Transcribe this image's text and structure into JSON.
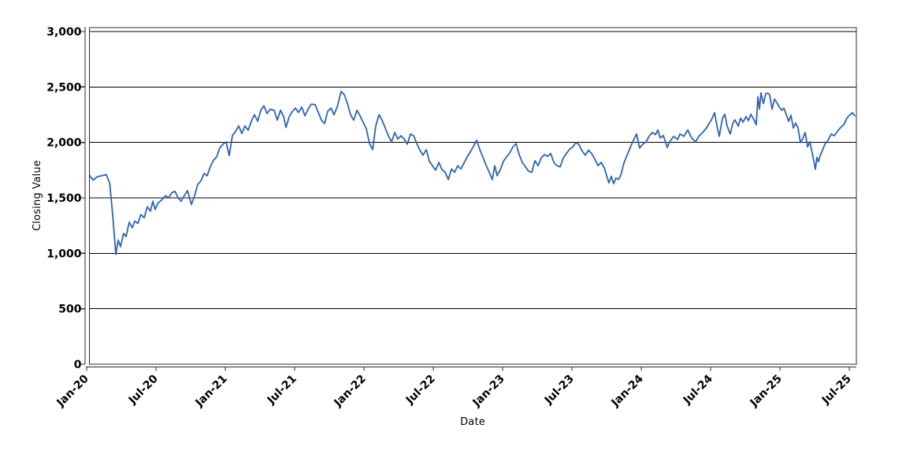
{
  "chart_data": {
    "type": "line",
    "title": "",
    "xlabel": "Date",
    "ylabel": "Closing Value",
    "legend": "none",
    "grid": "horizontal-only",
    "ylim": [
      0,
      3000
    ],
    "y_ticks": [
      0,
      500,
      1000,
      1500,
      2000,
      2500,
      3000
    ],
    "y_tick_labels": [
      "0",
      "500",
      "1,000",
      "1,500",
      "2,000",
      "2,500",
      "3,000"
    ],
    "x_tick_labels": [
      "Jan-20",
      "Jul-20",
      "Jan-21",
      "Jul-21",
      "Jan-22",
      "Jul-22",
      "Jan-23",
      "Jul-23",
      "Jan-24",
      "Jul-24",
      "Jan-25",
      "Jul-25"
    ],
    "x_tick_months": [
      0,
      6,
      12,
      18,
      24,
      30,
      36,
      42,
      48,
      54,
      60,
      66
    ],
    "x_unit": "months since Jan-2020",
    "colors": {
      "line": "#2F63AF",
      "grid": "#000000",
      "axis": "#2b2b2b",
      "border": "#2b2b2b",
      "text": "#000000",
      "background": "#ffffff"
    },
    "series": [
      {
        "name": "Closing Value",
        "points": [
          [
            0.2,
            1705
          ],
          [
            0.55,
            1660
          ],
          [
            0.9,
            1690
          ],
          [
            1.3,
            1700
          ],
          [
            1.7,
            1710
          ],
          [
            2.0,
            1630
          ],
          [
            2.25,
            1350
          ],
          [
            2.52,
            990
          ],
          [
            2.73,
            1120
          ],
          [
            2.93,
            1060
          ],
          [
            3.2,
            1180
          ],
          [
            3.41,
            1150
          ],
          [
            3.68,
            1280
          ],
          [
            3.95,
            1230
          ],
          [
            4.16,
            1290
          ],
          [
            4.43,
            1270
          ],
          [
            4.7,
            1350
          ],
          [
            4.98,
            1320
          ],
          [
            5.25,
            1420
          ],
          [
            5.52,
            1380
          ],
          [
            5.73,
            1470
          ],
          [
            5.93,
            1395
          ],
          [
            6.14,
            1450
          ],
          [
            6.48,
            1480
          ],
          [
            6.82,
            1520
          ],
          [
            7.09,
            1500
          ],
          [
            7.36,
            1545
          ],
          [
            7.64,
            1560
          ],
          [
            7.91,
            1500
          ],
          [
            8.18,
            1470
          ],
          [
            8.45,
            1520
          ],
          [
            8.73,
            1565
          ],
          [
            9.07,
            1440
          ],
          [
            9.34,
            1520
          ],
          [
            9.61,
            1620
          ],
          [
            9.89,
            1655
          ],
          [
            10.16,
            1720
          ],
          [
            10.43,
            1700
          ],
          [
            10.7,
            1780
          ],
          [
            10.98,
            1840
          ],
          [
            11.25,
            1870
          ],
          [
            11.52,
            1950
          ],
          [
            11.8,
            1985
          ],
          [
            12.07,
            2005
          ],
          [
            12.34,
            1880
          ],
          [
            12.61,
            2060
          ],
          [
            12.89,
            2100
          ],
          [
            13.16,
            2150
          ],
          [
            13.43,
            2080
          ],
          [
            13.7,
            2150
          ],
          [
            13.98,
            2110
          ],
          [
            14.25,
            2190
          ],
          [
            14.52,
            2250
          ],
          [
            14.8,
            2190
          ],
          [
            15.07,
            2290
          ],
          [
            15.34,
            2330
          ],
          [
            15.61,
            2260
          ],
          [
            15.89,
            2300
          ],
          [
            16.23,
            2290
          ],
          [
            16.5,
            2200
          ],
          [
            16.77,
            2290
          ],
          [
            17.05,
            2230
          ],
          [
            17.25,
            2135
          ],
          [
            17.52,
            2230
          ],
          [
            17.8,
            2280
          ],
          [
            18.07,
            2310
          ],
          [
            18.34,
            2270
          ],
          [
            18.61,
            2320
          ],
          [
            18.89,
            2240
          ],
          [
            19.16,
            2300
          ],
          [
            19.43,
            2345
          ],
          [
            19.77,
            2340
          ],
          [
            20.05,
            2270
          ],
          [
            20.32,
            2200
          ],
          [
            20.59,
            2170
          ],
          [
            20.86,
            2280
          ],
          [
            21.14,
            2310
          ],
          [
            21.41,
            2250
          ],
          [
            21.68,
            2320
          ],
          [
            22.02,
            2460
          ],
          [
            22.3,
            2430
          ],
          [
            22.57,
            2350
          ],
          [
            22.84,
            2250
          ],
          [
            23.11,
            2200
          ],
          [
            23.39,
            2290
          ],
          [
            23.66,
            2240
          ],
          [
            23.93,
            2180
          ],
          [
            24.2,
            2125
          ],
          [
            24.48,
            1990
          ],
          [
            24.75,
            1935
          ],
          [
            25.02,
            2150
          ],
          [
            25.3,
            2250
          ],
          [
            25.57,
            2200
          ],
          [
            25.84,
            2130
          ],
          [
            26.11,
            2060
          ],
          [
            26.39,
            2005
          ],
          [
            26.66,
            2090
          ],
          [
            26.93,
            2030
          ],
          [
            27.2,
            2060
          ],
          [
            27.48,
            2030
          ],
          [
            27.75,
            1985
          ],
          [
            28.02,
            2075
          ],
          [
            28.3,
            2060
          ],
          [
            28.57,
            1990
          ],
          [
            28.84,
            1930
          ],
          [
            29.11,
            1885
          ],
          [
            29.39,
            1935
          ],
          [
            29.66,
            1830
          ],
          [
            29.93,
            1790
          ],
          [
            30.2,
            1750
          ],
          [
            30.48,
            1820
          ],
          [
            30.75,
            1755
          ],
          [
            31.02,
            1730
          ],
          [
            31.3,
            1665
          ],
          [
            31.57,
            1760
          ],
          [
            31.84,
            1730
          ],
          [
            32.11,
            1790
          ],
          [
            32.39,
            1760
          ],
          [
            32.66,
            1815
          ],
          [
            32.93,
            1870
          ],
          [
            33.2,
            1915
          ],
          [
            33.48,
            1965
          ],
          [
            33.75,
            2020
          ],
          [
            34.02,
            1935
          ],
          [
            34.3,
            1865
          ],
          [
            34.57,
            1795
          ],
          [
            34.84,
            1730
          ],
          [
            35.11,
            1665
          ],
          [
            35.32,
            1790
          ],
          [
            35.52,
            1700
          ],
          [
            35.8,
            1755
          ],
          [
            36.07,
            1830
          ],
          [
            36.34,
            1870
          ],
          [
            36.61,
            1905
          ],
          [
            36.89,
            1960
          ],
          [
            37.16,
            1990
          ],
          [
            37.43,
            1890
          ],
          [
            37.7,
            1820
          ],
          [
            37.98,
            1780
          ],
          [
            38.25,
            1740
          ],
          [
            38.52,
            1730
          ],
          [
            38.8,
            1835
          ],
          [
            39.07,
            1790
          ],
          [
            39.34,
            1860
          ],
          [
            39.61,
            1890
          ],
          [
            39.89,
            1875
          ],
          [
            40.16,
            1900
          ],
          [
            40.43,
            1820
          ],
          [
            40.7,
            1790
          ],
          [
            40.98,
            1780
          ],
          [
            41.25,
            1860
          ],
          [
            41.52,
            1900
          ],
          [
            41.8,
            1940
          ],
          [
            42.07,
            1960
          ],
          [
            42.34,
            2000
          ],
          [
            42.61,
            1980
          ],
          [
            42.89,
            1920
          ],
          [
            43.16,
            1885
          ],
          [
            43.43,
            1930
          ],
          [
            43.7,
            1900
          ],
          [
            43.98,
            1850
          ],
          [
            44.25,
            1790
          ],
          [
            44.52,
            1820
          ],
          [
            44.8,
            1770
          ],
          [
            45.0,
            1700
          ],
          [
            45.2,
            1635
          ],
          [
            45.41,
            1695
          ],
          [
            45.61,
            1628
          ],
          [
            45.82,
            1680
          ],
          [
            46.02,
            1665
          ],
          [
            46.23,
            1705
          ],
          [
            46.5,
            1815
          ],
          [
            46.77,
            1885
          ],
          [
            47.05,
            1955
          ],
          [
            47.32,
            2020
          ],
          [
            47.59,
            2076
          ],
          [
            47.86,
            1950
          ],
          [
            48.14,
            1985
          ],
          [
            48.41,
            2005
          ],
          [
            48.68,
            2055
          ],
          [
            48.95,
            2090
          ],
          [
            49.23,
            2070
          ],
          [
            49.43,
            2112
          ],
          [
            49.64,
            2040
          ],
          [
            49.91,
            2062
          ],
          [
            50.25,
            1955
          ],
          [
            50.45,
            2005
          ],
          [
            50.8,
            2055
          ],
          [
            51.14,
            2027
          ],
          [
            51.34,
            2076
          ],
          [
            51.68,
            2055
          ],
          [
            52.02,
            2112
          ],
          [
            52.36,
            2040
          ],
          [
            52.7,
            2005
          ],
          [
            52.98,
            2055
          ],
          [
            53.32,
            2090
          ],
          [
            53.66,
            2133
          ],
          [
            53.86,
            2169
          ],
          [
            54.07,
            2204
          ],
          [
            54.34,
            2268
          ],
          [
            54.55,
            2147
          ],
          [
            54.75,
            2055
          ],
          [
            55.02,
            2219
          ],
          [
            55.23,
            2254
          ],
          [
            55.43,
            2147
          ],
          [
            55.7,
            2076
          ],
          [
            55.91,
            2169
          ],
          [
            56.11,
            2204
          ],
          [
            56.39,
            2147
          ],
          [
            56.59,
            2219
          ],
          [
            56.8,
            2183
          ],
          [
            57.07,
            2233
          ],
          [
            57.27,
            2197
          ],
          [
            57.48,
            2254
          ],
          [
            57.75,
            2204
          ],
          [
            57.95,
            2160
          ],
          [
            58.09,
            2410
          ],
          [
            58.23,
            2300
          ],
          [
            58.36,
            2447
          ],
          [
            58.57,
            2350
          ],
          [
            58.77,
            2440
          ],
          [
            58.98,
            2445
          ],
          [
            59.11,
            2430
          ],
          [
            59.32,
            2300
          ],
          [
            59.52,
            2390
          ],
          [
            59.73,
            2360
          ],
          [
            59.93,
            2320
          ],
          [
            60.14,
            2290
          ],
          [
            60.34,
            2310
          ],
          [
            60.55,
            2250
          ],
          [
            60.75,
            2190
          ],
          [
            60.95,
            2245
          ],
          [
            61.16,
            2130
          ],
          [
            61.36,
            2175
          ],
          [
            61.57,
            2130
          ],
          [
            61.77,
            2000
          ],
          [
            61.98,
            2035
          ],
          [
            62.18,
            2090
          ],
          [
            62.39,
            1960
          ],
          [
            62.59,
            2005
          ],
          [
            62.8,
            1900
          ],
          [
            62.93,
            1830
          ],
          [
            63.07,
            1758
          ],
          [
            63.2,
            1865
          ],
          [
            63.34,
            1825
          ],
          [
            63.48,
            1880
          ],
          [
            63.68,
            1930
          ],
          [
            63.89,
            1985
          ],
          [
            64.16,
            2020
          ],
          [
            64.43,
            2075
          ],
          [
            64.7,
            2060
          ],
          [
            64.98,
            2100
          ],
          [
            65.25,
            2135
          ],
          [
            65.52,
            2160
          ],
          [
            65.8,
            2220
          ],
          [
            66.07,
            2250
          ],
          [
            66.27,
            2268
          ],
          [
            66.48,
            2240
          ]
        ]
      }
    ]
  }
}
